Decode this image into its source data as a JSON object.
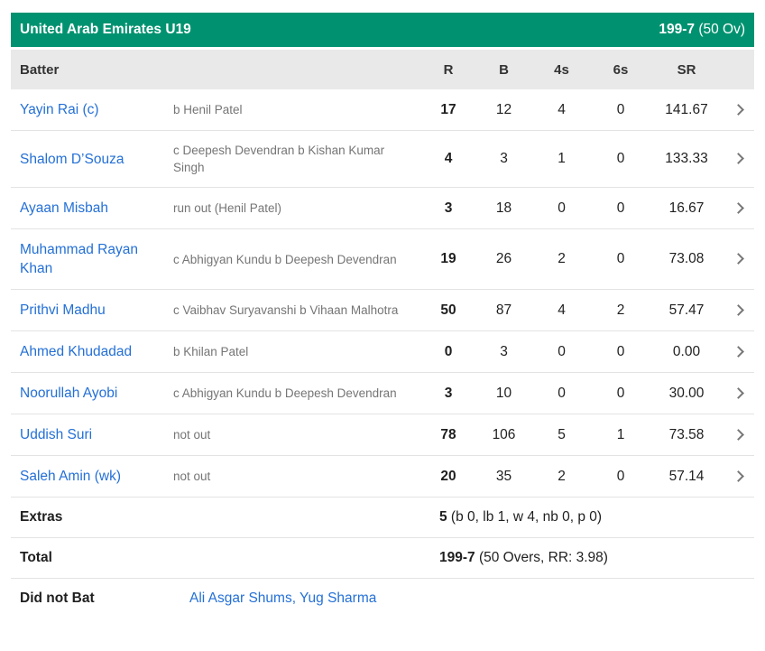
{
  "header": {
    "team": "United Arab Emirates U19",
    "score_bold": "199-7",
    "score_suffix": " (50 Ov)"
  },
  "columns": {
    "batter": "Batter",
    "runs": "R",
    "balls": "B",
    "fours": "4s",
    "sixes": "6s",
    "strike_rate": "SR"
  },
  "batters": [
    {
      "name": "Yayin Rai (c)",
      "dismissal": "b Henil Patel",
      "r": "17",
      "b": "12",
      "fours": "4",
      "sixes": "0",
      "sr": "141.67"
    },
    {
      "name": "Shalom D’Souza",
      "dismissal": "c Deepesh Devendran b Kishan Kumar Singh",
      "r": "4",
      "b": "3",
      "fours": "1",
      "sixes": "0",
      "sr": "133.33"
    },
    {
      "name": "Ayaan Misbah",
      "dismissal": "run out (Henil Patel)",
      "r": "3",
      "b": "18",
      "fours": "0",
      "sixes": "0",
      "sr": "16.67"
    },
    {
      "name": "Muhammad Rayan Khan",
      "dismissal": "c Abhigyan Kundu b Deepesh Devendran",
      "r": "19",
      "b": "26",
      "fours": "2",
      "sixes": "0",
      "sr": "73.08"
    },
    {
      "name": "Prithvi Madhu",
      "dismissal": "c Vaibhav Suryavanshi b Vihaan Malhotra",
      "r": "50",
      "b": "87",
      "fours": "4",
      "sixes": "2",
      "sr": "57.47"
    },
    {
      "name": "Ahmed Khudadad",
      "dismissal": "b Khilan Patel",
      "r": "0",
      "b": "3",
      "fours": "0",
      "sixes": "0",
      "sr": "0.00"
    },
    {
      "name": "Noorullah Ayobi",
      "dismissal": "c Abhigyan Kundu b Deepesh Devendran",
      "r": "3",
      "b": "10",
      "fours": "0",
      "sixes": "0",
      "sr": "30.00"
    },
    {
      "name": "Uddish Suri",
      "dismissal": "not out",
      "r": "78",
      "b": "106",
      "fours": "5",
      "sixes": "1",
      "sr": "73.58"
    },
    {
      "name": "Saleh Amin (wk)",
      "dismissal": "not out",
      "r": "20",
      "b": "35",
      "fours": "2",
      "sixes": "0",
      "sr": "57.14"
    }
  ],
  "extras": {
    "label": "Extras",
    "runs": "5",
    "detail": " (b 0, lb 1, w 4, nb 0, p 0)"
  },
  "total": {
    "label": "Total",
    "score": "199-7",
    "detail": " (50 Overs, RR: 3.98)"
  },
  "did_not_bat": {
    "label": "Did not Bat",
    "players": "Ali Asgar Shums, Yug Sharma"
  },
  "icons": {
    "chevron_right": "chevron-right"
  },
  "colors": {
    "header_green": "#009270",
    "link_blue": "#2470d6",
    "dismissal_gray": "#757575",
    "header_row_bg": "#e9e9e9",
    "separator": "#e3e3e3",
    "chevron_gray": "#777777"
  }
}
